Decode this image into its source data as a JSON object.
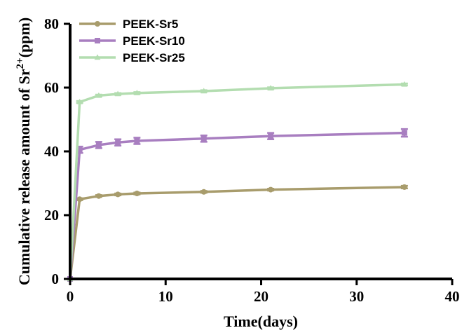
{
  "chart_data": {
    "type": "line",
    "title": "",
    "xlabel": "Time(days)",
    "ylabel_parts": {
      "main": "Cumulative release amount of Sr",
      "superscript": "2+",
      "unit": "(ppm)"
    },
    "xlim": [
      0,
      40
    ],
    "ylim": [
      0,
      80
    ],
    "xticks": [
      0,
      10,
      20,
      30,
      40
    ],
    "yticks": [
      0,
      20,
      40,
      60,
      80
    ],
    "grid": false,
    "legend_position": "top-left",
    "x": [
      0,
      1,
      3,
      5,
      7,
      14,
      21,
      35
    ],
    "series": [
      {
        "name": "PEEK-Sr5",
        "color": "#a89c6c",
        "marker": "circle",
        "values": [
          0,
          25.0,
          26.0,
          26.5,
          26.8,
          27.3,
          28.0,
          28.8
        ],
        "errors": [
          0,
          0.3,
          0.3,
          0.3,
          0.3,
          0.3,
          0.3,
          0.4
        ]
      },
      {
        "name": "PEEK-Sr10",
        "color": "#a87ec0",
        "marker": "square",
        "values": [
          0,
          40.5,
          42.0,
          42.8,
          43.3,
          44.0,
          44.8,
          45.8
        ],
        "errors": [
          0,
          1.0,
          1.0,
          1.0,
          1.0,
          1.0,
          1.0,
          1.2
        ]
      },
      {
        "name": "PEEK-Sr25",
        "color": "#b3ddb0",
        "marker": "triangle",
        "values": [
          0,
          55.5,
          57.5,
          58.0,
          58.3,
          58.9,
          59.8,
          61.0
        ],
        "errors": [
          0,
          0.3,
          0.3,
          0.3,
          0.3,
          0.3,
          0.3,
          0.3
        ]
      }
    ]
  }
}
